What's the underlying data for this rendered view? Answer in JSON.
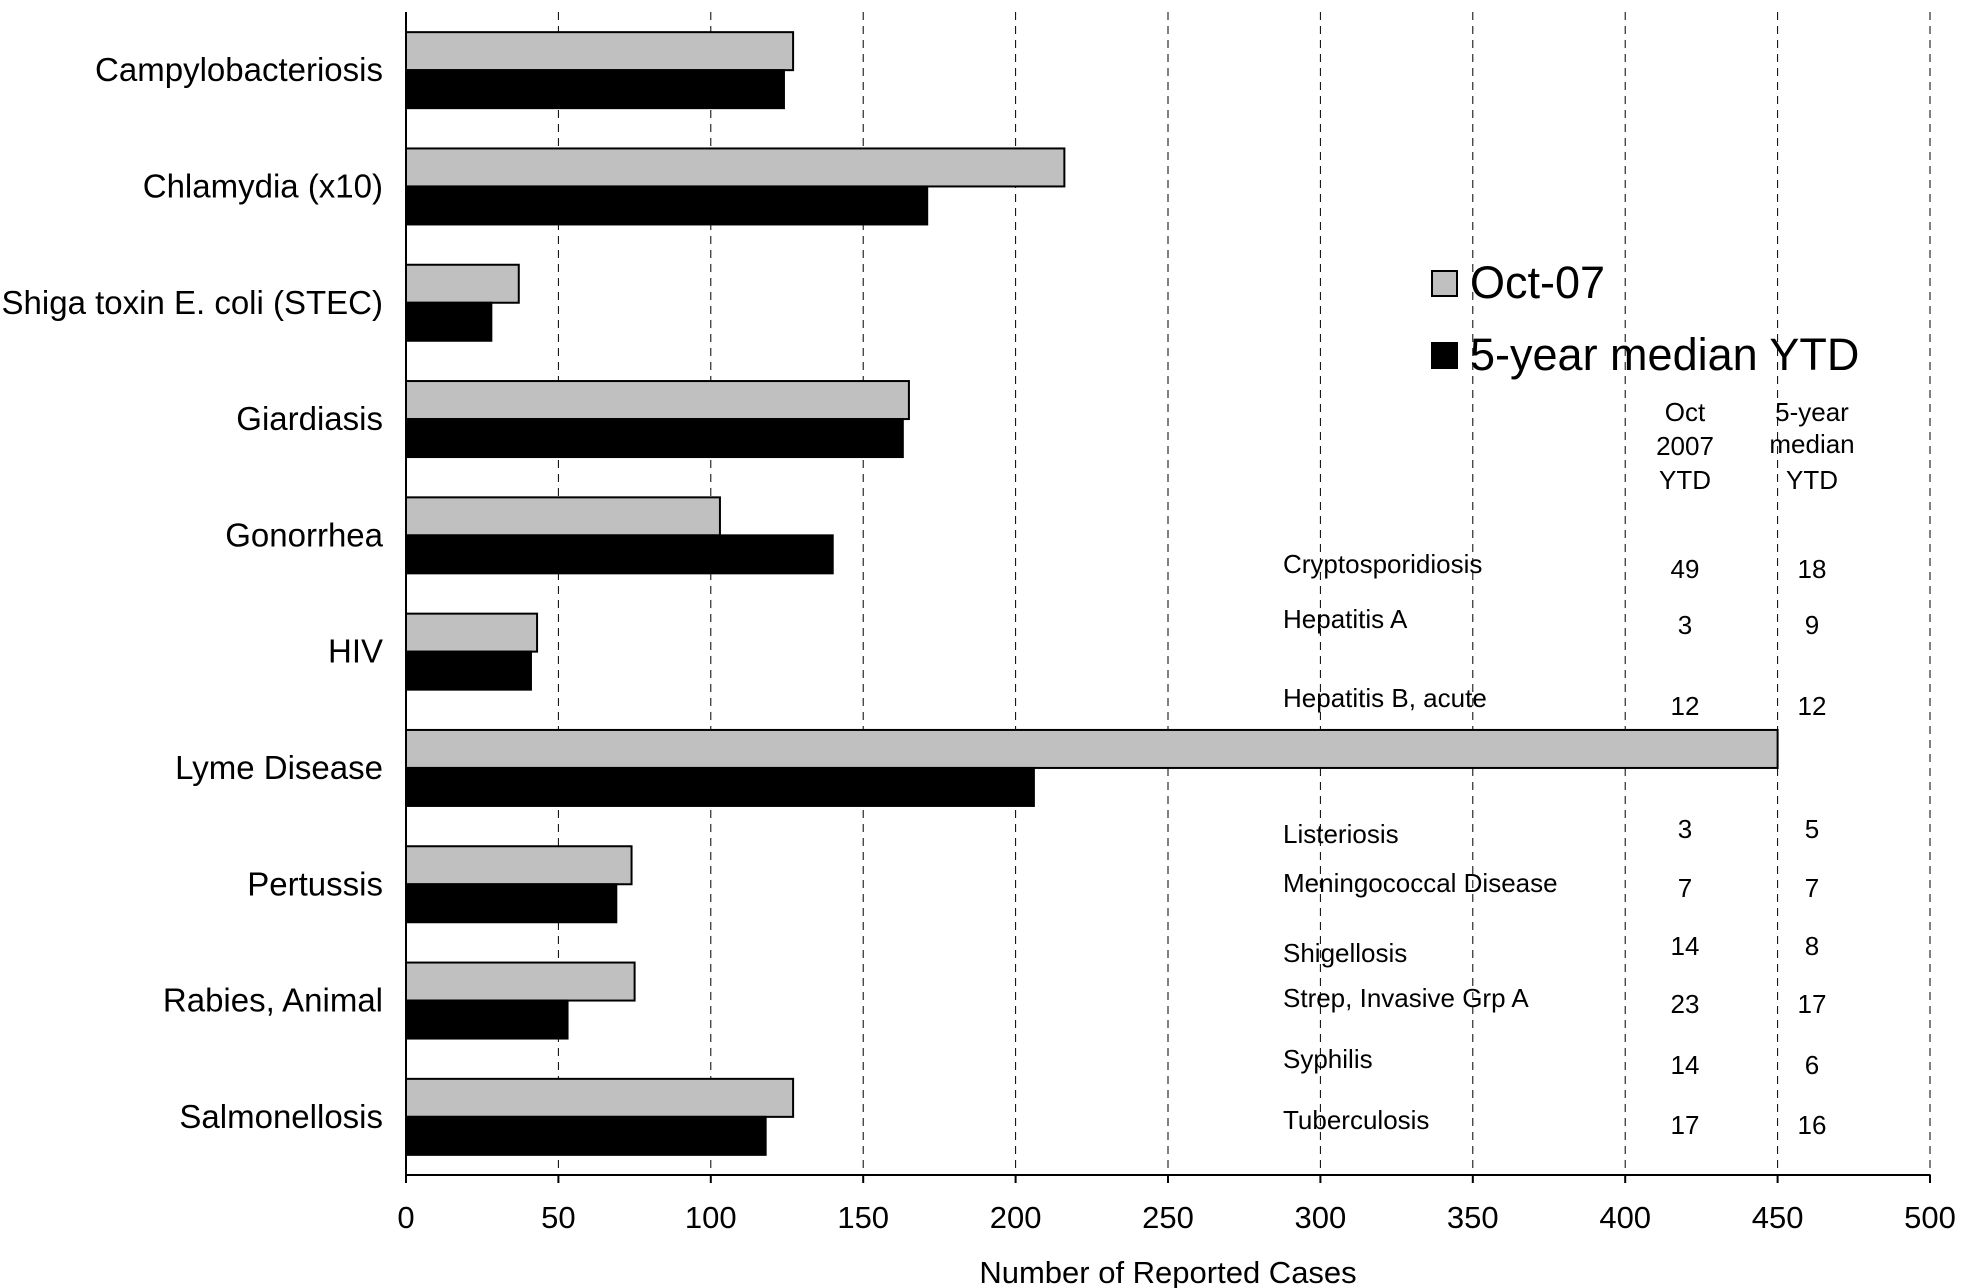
{
  "chart_data": {
    "type": "bar",
    "orientation": "horizontal",
    "categories": [
      "Campylobacteriosis",
      "Chlamydia (x10)",
      "Shiga toxin E. coli (STEC)",
      "Giardiasis",
      "Gonorrhea",
      "HIV",
      "Lyme Disease",
      "Pertussis",
      "Rabies, Animal",
      "Salmonellosis"
    ],
    "series": [
      {
        "name": "Oct-07",
        "color": "#c0c0c0",
        "values": [
          127,
          216,
          37,
          165,
          103,
          43,
          450,
          74,
          75,
          127
        ]
      },
      {
        "name": "5-year median YTD",
        "color": "#000000",
        "values": [
          124,
          171,
          28,
          163,
          140,
          41,
          206,
          69,
          53,
          118
        ]
      }
    ],
    "xlabel": "Number of Reported Cases",
    "ylabel": "",
    "title": "",
    "xlim": [
      0,
      500
    ],
    "xticks": [
      0,
      50,
      100,
      150,
      200,
      250,
      300,
      350,
      400,
      450,
      500
    ],
    "grid": "vertical dashed",
    "legend_position": "right"
  },
  "table": {
    "headers": [
      [
        "Oct",
        "2007",
        "YTD"
      ],
      [
        "5-year",
        "median",
        "YTD"
      ]
    ],
    "rows": [
      {
        "name": "Cryptosporidiosis",
        "oct": "49",
        "median": "18"
      },
      {
        "name": "Hepatitis A",
        "oct": "3",
        "median": "9"
      },
      {
        "name": "Hepatitis B, acute",
        "oct": "12",
        "median": "12"
      },
      {
        "name": "Listeriosis",
        "oct": "3",
        "median": "5"
      },
      {
        "name": "Meningococcal Disease",
        "oct": "7",
        "median": "7"
      },
      {
        "name": "Shigellosis",
        "oct": "14",
        "median": "8"
      },
      {
        "name": "Strep, Invasive Grp A",
        "oct": "23",
        "median": "17"
      },
      {
        "name": "Syphilis",
        "oct": "14",
        "median": "6"
      },
      {
        "name": "Tuberculosis",
        "oct": "17",
        "median": "16"
      }
    ]
  }
}
